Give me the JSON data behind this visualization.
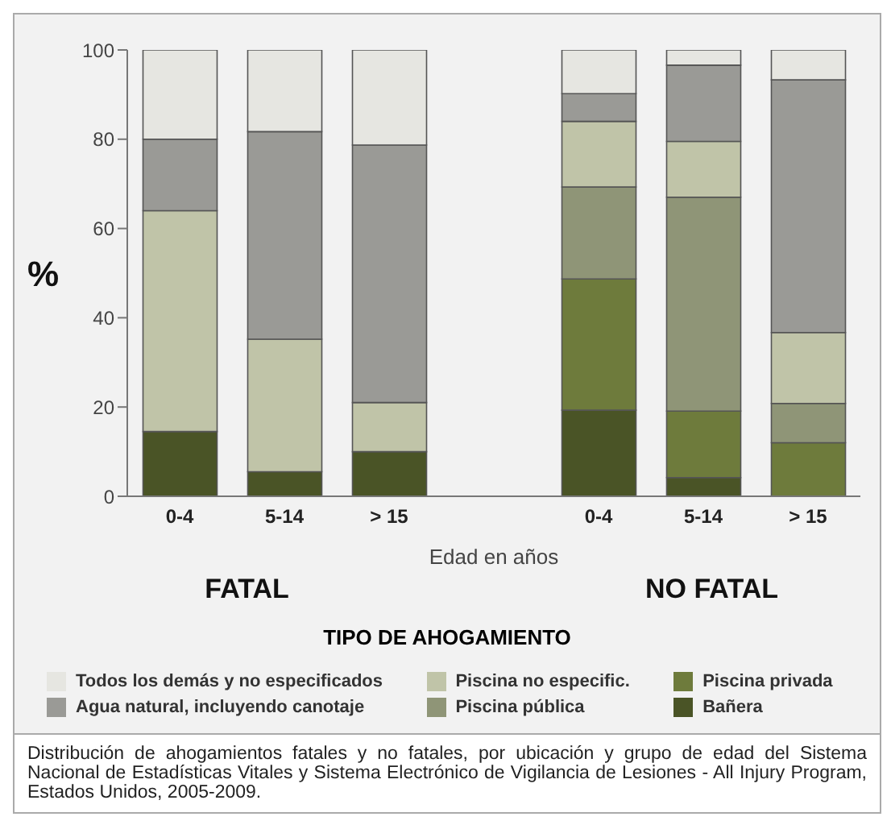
{
  "chart_data": {
    "type": "bar",
    "stacked": true,
    "ylabel": "%",
    "xlabel": "Edad en años",
    "legend_title": "TIPO DE AHOGAMIENTO",
    "legend": "bottom",
    "grid": false,
    "categories": [
      "0-4",
      "5-14",
      "> 15",
      null,
      "0-4",
      "5-14",
      "> 15"
    ],
    "ylim": [
      0,
      100
    ],
    "yticks": [
      0,
      20,
      40,
      60,
      80,
      100
    ],
    "series": [
      {
        "name": "Bañera",
        "color": "#4a5426",
        "values": [
          14.5,
          5.5,
          10,
          null,
          19.3,
          4.2,
          0
        ]
      },
      {
        "name": "Piscina privada",
        "color": "#6e7b3c",
        "values": [
          0,
          0,
          0,
          null,
          29.4,
          14.9,
          12
        ]
      },
      {
        "name": "Piscina pública",
        "color": "#8f9577",
        "values": [
          0,
          0,
          0,
          null,
          20.6,
          47.9,
          8.8
        ]
      },
      {
        "name": "Piscina no especific.",
        "color": "#c0c4a8",
        "values": [
          49.5,
          29.7,
          11,
          null,
          14.7,
          12.5,
          15.9
        ]
      },
      {
        "name": "Agua natural, incluyendo canotaje",
        "color": "#9a9a96",
        "values": [
          16,
          46.5,
          57.7,
          null,
          6.2,
          17.1,
          56.6
        ]
      },
      {
        "name": "Todos los demás y no especificados",
        "color": "#e6e6e1",
        "values": [
          20,
          18.3,
          21.3,
          null,
          9.8,
          3.4,
          6.7
        ]
      }
    ],
    "annotations": [
      "FATAL",
      "NO FATAL",
      "Distribución de ahogamientos fatales y no fatales, por ubicación y grupo de edad del Sistema Nacional de Estadísticas Vitales y Sistema Electrónico de Vigilancia de Lesiones - All Injury Program, Estados Unidos, 2005-2009."
    ]
  }
}
